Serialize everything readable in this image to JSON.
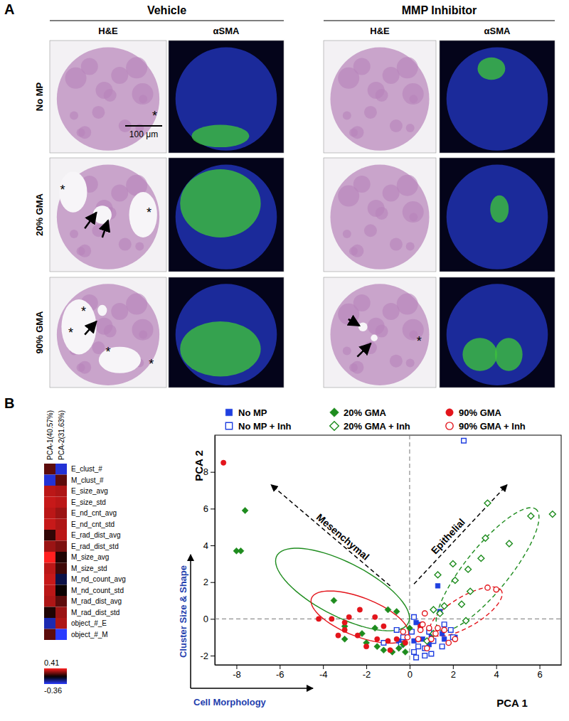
{
  "panel_a": {
    "label": "A",
    "groups": [
      "Vehicle",
      "MMP Inhibitor"
    ],
    "columns": [
      "H&E",
      "αSMA",
      "H&E",
      "αSMA"
    ],
    "rows": [
      "No MP",
      "20% GMA",
      "90% GMA"
    ],
    "scale_bar": "100 μm",
    "asterisks": [
      [
        "*"
      ],
      [],
      [],
      [],
      [
        "*",
        "*"
      ],
      [],
      [],
      [],
      [
        "*",
        "*",
        "*",
        "*"
      ],
      [],
      [
        "*"
      ],
      []
    ]
  },
  "chart_data": [
    {
      "type": "heatmap",
      "columns": [
        "PCA-1(40.57%)",
        "PCA-2(31.63%)"
      ],
      "rows": [
        "E_clust_#",
        "M_clust_#",
        "E_size_avg",
        "E_size_std",
        "E_nd_cnt_avg",
        "E_nd_cnt_std",
        "E_rad_dist_avg",
        "E_rad_dist_std",
        "M_size_avg",
        "M_size_std",
        "M_nd_count_avg",
        "M_nd_count_std",
        "M_rad_dist_avg",
        "M_rad_dist_std",
        "object_#_E",
        "object_#_M"
      ],
      "values": [
        [
          0.15,
          -0.3
        ],
        [
          -0.3,
          0.15
        ],
        [
          0.3,
          0.28
        ],
        [
          0.32,
          0.3
        ],
        [
          0.3,
          0.25
        ],
        [
          0.32,
          0.28
        ],
        [
          0.08,
          0.3
        ],
        [
          0.25,
          0.2
        ],
        [
          0.41,
          0.05
        ],
        [
          0.3,
          0.1
        ],
        [
          0.32,
          -0.1
        ],
        [
          0.3,
          0.02
        ],
        [
          0.28,
          0.15
        ],
        [
          0.05,
          0.25
        ],
        [
          -0.25,
          0.28
        ],
        [
          0.15,
          -0.36
        ]
      ],
      "colorbar": {
        "range": [
          -0.36,
          0.41
        ],
        "ticks": [
          0.41,
          -0.36
        ]
      }
    },
    {
      "type": "scatter",
      "panel_label": "B",
      "xlabel": "PCA 1",
      "ylabel": "PCA 2",
      "x_note": "Cell Morphology",
      "y_note": "Cluster Size & Shape",
      "xlim": [
        -9,
        7
      ],
      "ylim": [
        -2.5,
        10
      ],
      "xticks": [
        -8,
        -6,
        -4,
        -2,
        0,
        2,
        4,
        6
      ],
      "yticks": [
        -2,
        0,
        2,
        4,
        6,
        8
      ],
      "legend": "top",
      "zero_lines": {
        "x": 0,
        "y": 0
      },
      "annotations": [
        {
          "text": "Mesenchymal",
          "from": [
            -0.9,
            1.8
          ],
          "to": [
            -6.4,
            7.3
          ]
        },
        {
          "text": "Epithelial",
          "from": [
            0.2,
            1.9
          ],
          "to": [
            4.5,
            7.3
          ]
        }
      ],
      "series": [
        {
          "name": "No MP",
          "color": "#1f3fe0",
          "marker": "square",
          "x": [
            1.3,
            1.4,
            0.3,
            0.5,
            0.9,
            1.5,
            1.0,
            0.6,
            0.2,
            -0.5,
            0.9,
            1.6,
            2.1,
            0.5
          ],
          "y": [
            1.8,
            0.4,
            -0.2,
            -0.5,
            -0.7,
            -0.8,
            -0.9,
            -1.1,
            -1.2,
            -1.2,
            -1.4,
            -1.1,
            -1.0,
            -0.3
          ]
        },
        {
          "name": "No MP + Inh",
          "color": "#1f3fe0",
          "marker": "square-open",
          "x": [
            2.5,
            0.2,
            0.1,
            -0.6,
            -1.2,
            -0.4,
            0.4,
            0.7,
            0.2,
            0.3,
            0.7,
            1.0,
            1.1,
            1.6,
            1.9,
            2.0,
            1.5,
            -0.3,
            0.9
          ],
          "y": [
            9.7,
            0.1,
            -0.7,
            -0.6,
            -1.3,
            -1.4,
            -1.5,
            -1.6,
            -1.8,
            -2.1,
            -2.0,
            -1.9,
            -1.2,
            -0.3,
            -0.6,
            -1.0,
            -1.5,
            -1.0,
            -0.7
          ]
        },
        {
          "name": "20% GMA",
          "color": "#1e8c1e",
          "marker": "diamond",
          "line_style": "solid",
          "x": [
            -7.6,
            -8.0,
            -7.8,
            -3.5,
            -1.0,
            -0.6,
            -3.0,
            -2.2,
            -1.6,
            -2.0,
            -1.5,
            -1.2,
            -0.8,
            -0.5,
            -0.2,
            0.0,
            -0.3,
            -3.0
          ],
          "y": [
            5.9,
            3.7,
            3.7,
            1.0,
            0.5,
            0.4,
            -0.4,
            -0.8,
            -0.5,
            -1.3,
            -1.5,
            -1.7,
            -1.8,
            -1.6,
            -1.8,
            -0.5,
            -1.4,
            -1.1
          ],
          "ellipse": {
            "center": [
              -3.1,
              1.6
            ],
            "axis1": [
              -3.0,
              1.9
            ],
            "axis2": [
              0.75,
              1.2
            ]
          }
        },
        {
          "name": "20% GMA + Inh",
          "color": "#1e8c1e",
          "marker": "diamond-open",
          "line_style": "dashed",
          "x": [
            6.6,
            5.6,
            3.6,
            3.5,
            4.6,
            3.3,
            1.3,
            2.0,
            2.7,
            2.1,
            2.8,
            2.4,
            1.6,
            1.1,
            1.1,
            2.6,
            1.4,
            0.8
          ],
          "y": [
            5.7,
            5.6,
            6.3,
            4.4,
            4.1,
            3.3,
            2.4,
            3.0,
            2.7,
            2.1,
            1.5,
            0.8,
            0.7,
            0.5,
            -0.8,
            -0.1,
            0.3,
            -1.2
          ],
          "ellipse": {
            "center": [
              3.6,
              2.7
            ],
            "axis1": [
              2.2,
              3.3
            ],
            "axis2": [
              0.9,
              -0.6
            ]
          }
        },
        {
          "name": "90% GMA",
          "color": "#e3141b",
          "marker": "circle",
          "line_style": "solid",
          "x": [
            -8.6,
            -4.2,
            -3.6,
            -2.3,
            -2.8,
            -3.0,
            -3.0,
            -3.3,
            -2.4,
            -1.6,
            -1.2,
            -1.5,
            -1.0,
            -0.6,
            -2.0,
            -0.9,
            0.5,
            -0.2
          ],
          "y": [
            8.5,
            0.0,
            0.0,
            0.5,
            0.1,
            -0.2,
            -0.6,
            -0.9,
            -0.9,
            0.1,
            -0.4,
            -1.1,
            -1.2,
            -1.1,
            -1.5,
            -1.7,
            -0.4,
            -1.3
          ],
          "ellipse": {
            "center": [
              -2.3,
              0.1
            ],
            "axis1": [
              -2.2,
              1.1
            ],
            "axis2": [
              0.5,
              0.9
            ]
          }
        },
        {
          "name": "90% GMA + Inh",
          "color": "#e3141b",
          "marker": "circle-open",
          "line_style": "dashed",
          "x": [
            4.0,
            3.6,
            0.7,
            0.6,
            0.9,
            0.5,
            1.3,
            1.6,
            1.8,
            1.0,
            0.4,
            -0.1,
            0.8,
            2.1,
            1.2,
            -0.3
          ],
          "y": [
            1.6,
            1.7,
            0.3,
            -0.3,
            -0.5,
            -0.6,
            -0.5,
            -0.6,
            -1.3,
            -1.1,
            -1.1,
            -1.0,
            -1.6,
            -1.1,
            -0.8,
            -0.7
          ],
          "ellipse": {
            "center": [
              2.6,
              0.4
            ],
            "axis1": [
              1.6,
              1.2
            ],
            "axis2": [
              0.5,
              -0.6
            ]
          }
        }
      ]
    }
  ]
}
